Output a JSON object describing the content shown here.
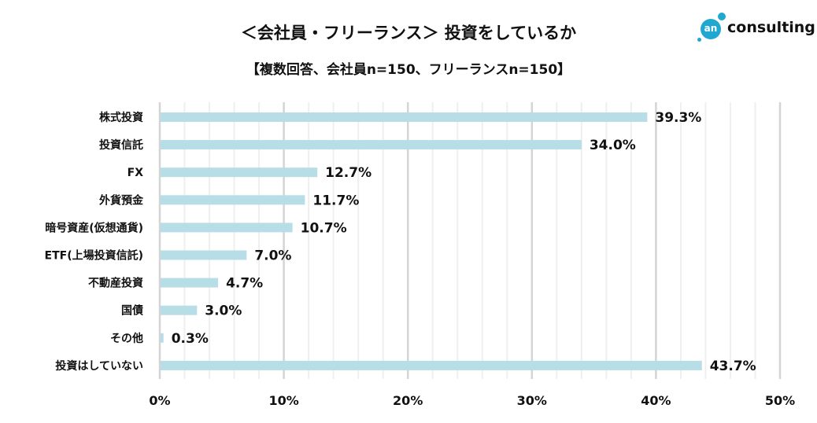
{
  "logo": {
    "mark": "an",
    "text": "consulting"
  },
  "chart_data": {
    "type": "bar",
    "orientation": "horizontal",
    "title": "＜会社員・フリーランス＞ 投資をしているか",
    "subtitle": "【複数回答、会社員n=150、フリーランスn=150】",
    "categories": [
      "株式投資",
      "投資信託",
      "FX",
      "外貨預金",
      "暗号資産(仮想通貨)",
      "ETF(上場投資信託)",
      "不動産投資",
      "国債",
      "その他",
      "投資はしていない"
    ],
    "values": [
      39.3,
      34.0,
      12.7,
      11.7,
      10.7,
      7.0,
      4.7,
      3.0,
      0.3,
      43.7
    ],
    "data_labels": [
      "39.3%",
      "34.0%",
      "12.7%",
      "11.7%",
      "10.7%",
      "7.0%",
      "4.7%",
      "3.0%",
      "0.3%",
      "43.7%"
    ],
    "xlim": [
      0,
      50
    ],
    "x_ticks": [
      "0%",
      "10%",
      "20%",
      "30%",
      "40%",
      "50%"
    ],
    "bar_color": "#b7dde7",
    "grid": true
  }
}
